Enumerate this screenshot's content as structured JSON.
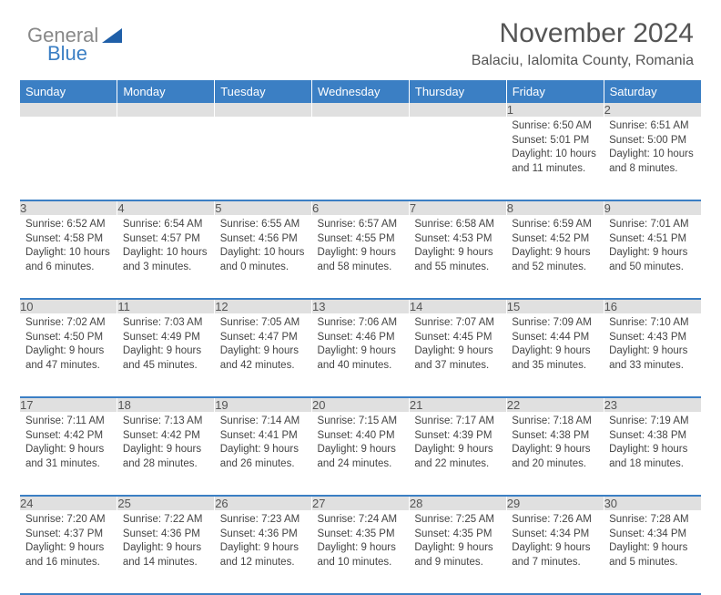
{
  "logo": {
    "general": "General",
    "blue": "Blue"
  },
  "header": {
    "title": "November 2024",
    "location": "Balaciu, Ialomita County, Romania"
  },
  "colors": {
    "accent": "#3b7fc4",
    "day_bg": "#e0e0e0",
    "text": "#444444",
    "title": "#555555",
    "bg": "#ffffff"
  },
  "weekdays": [
    "Sunday",
    "Monday",
    "Tuesday",
    "Wednesday",
    "Thursday",
    "Friday",
    "Saturday"
  ],
  "weeks": [
    [
      null,
      null,
      null,
      null,
      null,
      {
        "n": "1",
        "sr": "6:50 AM",
        "ss": "5:01 PM",
        "dl": "10 hours and 11 minutes."
      },
      {
        "n": "2",
        "sr": "6:51 AM",
        "ss": "5:00 PM",
        "dl": "10 hours and 8 minutes."
      }
    ],
    [
      {
        "n": "3",
        "sr": "6:52 AM",
        "ss": "4:58 PM",
        "dl": "10 hours and 6 minutes."
      },
      {
        "n": "4",
        "sr": "6:54 AM",
        "ss": "4:57 PM",
        "dl": "10 hours and 3 minutes."
      },
      {
        "n": "5",
        "sr": "6:55 AM",
        "ss": "4:56 PM",
        "dl": "10 hours and 0 minutes."
      },
      {
        "n": "6",
        "sr": "6:57 AM",
        "ss": "4:55 PM",
        "dl": "9 hours and 58 minutes."
      },
      {
        "n": "7",
        "sr": "6:58 AM",
        "ss": "4:53 PM",
        "dl": "9 hours and 55 minutes."
      },
      {
        "n": "8",
        "sr": "6:59 AM",
        "ss": "4:52 PM",
        "dl": "9 hours and 52 minutes."
      },
      {
        "n": "9",
        "sr": "7:01 AM",
        "ss": "4:51 PM",
        "dl": "9 hours and 50 minutes."
      }
    ],
    [
      {
        "n": "10",
        "sr": "7:02 AM",
        "ss": "4:50 PM",
        "dl": "9 hours and 47 minutes."
      },
      {
        "n": "11",
        "sr": "7:03 AM",
        "ss": "4:49 PM",
        "dl": "9 hours and 45 minutes."
      },
      {
        "n": "12",
        "sr": "7:05 AM",
        "ss": "4:47 PM",
        "dl": "9 hours and 42 minutes."
      },
      {
        "n": "13",
        "sr": "7:06 AM",
        "ss": "4:46 PM",
        "dl": "9 hours and 40 minutes."
      },
      {
        "n": "14",
        "sr": "7:07 AM",
        "ss": "4:45 PM",
        "dl": "9 hours and 37 minutes."
      },
      {
        "n": "15",
        "sr": "7:09 AM",
        "ss": "4:44 PM",
        "dl": "9 hours and 35 minutes."
      },
      {
        "n": "16",
        "sr": "7:10 AM",
        "ss": "4:43 PM",
        "dl": "9 hours and 33 minutes."
      }
    ],
    [
      {
        "n": "17",
        "sr": "7:11 AM",
        "ss": "4:42 PM",
        "dl": "9 hours and 31 minutes."
      },
      {
        "n": "18",
        "sr": "7:13 AM",
        "ss": "4:42 PM",
        "dl": "9 hours and 28 minutes."
      },
      {
        "n": "19",
        "sr": "7:14 AM",
        "ss": "4:41 PM",
        "dl": "9 hours and 26 minutes."
      },
      {
        "n": "20",
        "sr": "7:15 AM",
        "ss": "4:40 PM",
        "dl": "9 hours and 24 minutes."
      },
      {
        "n": "21",
        "sr": "7:17 AM",
        "ss": "4:39 PM",
        "dl": "9 hours and 22 minutes."
      },
      {
        "n": "22",
        "sr": "7:18 AM",
        "ss": "4:38 PM",
        "dl": "9 hours and 20 minutes."
      },
      {
        "n": "23",
        "sr": "7:19 AM",
        "ss": "4:38 PM",
        "dl": "9 hours and 18 minutes."
      }
    ],
    [
      {
        "n": "24",
        "sr": "7:20 AM",
        "ss": "4:37 PM",
        "dl": "9 hours and 16 minutes."
      },
      {
        "n": "25",
        "sr": "7:22 AM",
        "ss": "4:36 PM",
        "dl": "9 hours and 14 minutes."
      },
      {
        "n": "26",
        "sr": "7:23 AM",
        "ss": "4:36 PM",
        "dl": "9 hours and 12 minutes."
      },
      {
        "n": "27",
        "sr": "7:24 AM",
        "ss": "4:35 PM",
        "dl": "9 hours and 10 minutes."
      },
      {
        "n": "28",
        "sr": "7:25 AM",
        "ss": "4:35 PM",
        "dl": "9 hours and 9 minutes."
      },
      {
        "n": "29",
        "sr": "7:26 AM",
        "ss": "4:34 PM",
        "dl": "9 hours and 7 minutes."
      },
      {
        "n": "30",
        "sr": "7:28 AM",
        "ss": "4:34 PM",
        "dl": "9 hours and 5 minutes."
      }
    ]
  ],
  "labels": {
    "sunrise": "Sunrise:",
    "sunset": "Sunset:",
    "daylight": "Daylight:"
  }
}
